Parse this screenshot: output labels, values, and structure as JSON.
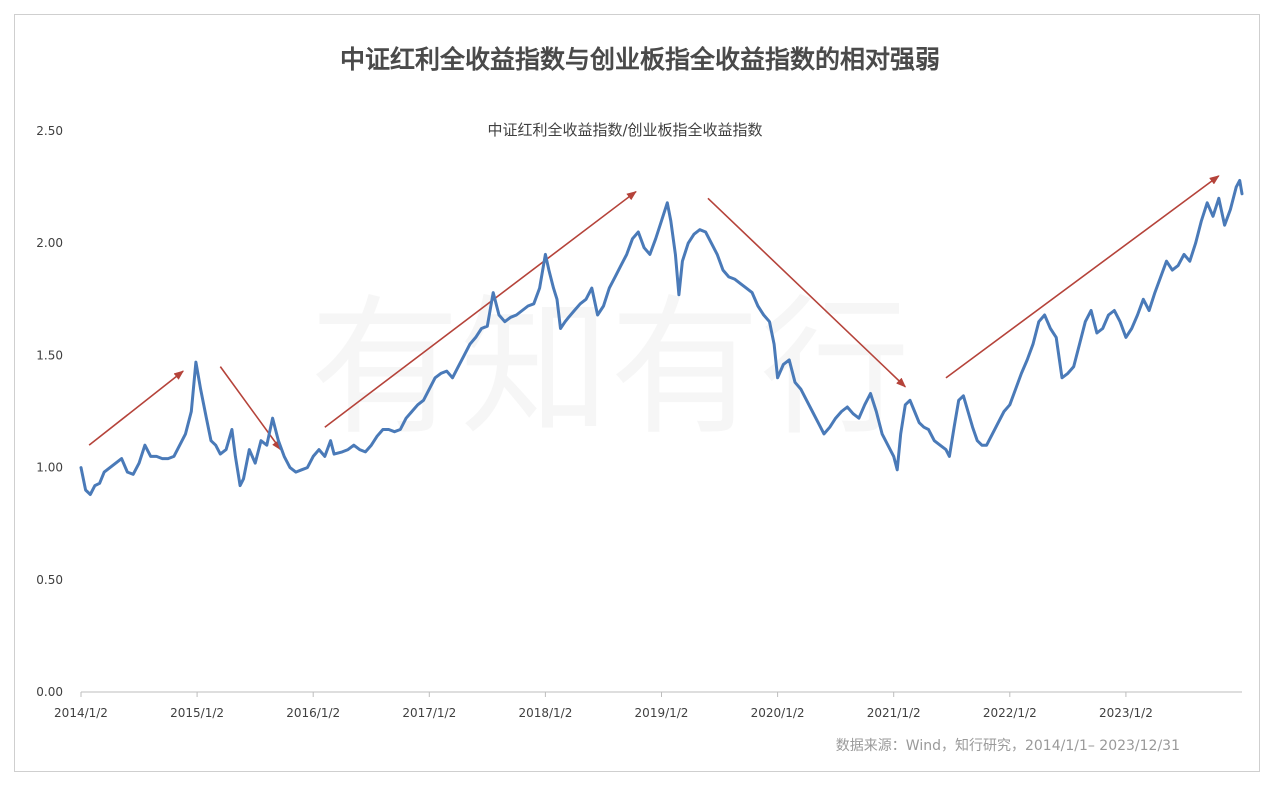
{
  "chart_data": {
    "type": "line",
    "title": "中证红利全收益指数与创业板指全收益指数的相对强弱",
    "subtitle": "中证红利全收益指数/创业板指全收益指数",
    "source": "数据来源：Wind，知行研究，2014/1/1– 2023/12/31",
    "watermark": "有知有行",
    "ylim": [
      0,
      2.5
    ],
    "yticks": [
      "0.00",
      "0.50",
      "1.00",
      "1.50",
      "2.00",
      "2.50"
    ],
    "xticks": [
      "2014/1/2",
      "2015/1/2",
      "2016/1/2",
      "2017/1/2",
      "2018/1/2",
      "2019/1/2",
      "2020/1/2",
      "2021/1/2",
      "2022/1/2",
      "2023/1/2"
    ],
    "x_range": [
      2014.0,
      2024.0
    ],
    "grid": false,
    "line_color": "#4a7ab8",
    "arrow_color": "#b5433a",
    "series": [
      {
        "values": [
          [
            2014.0,
            1.0
          ],
          [
            2014.04,
            0.9
          ],
          [
            2014.08,
            0.88
          ],
          [
            2014.12,
            0.92
          ],
          [
            2014.16,
            0.93
          ],
          [
            2014.2,
            0.98
          ],
          [
            2014.25,
            1.0
          ],
          [
            2014.3,
            1.02
          ],
          [
            2014.35,
            1.04
          ],
          [
            2014.4,
            0.98
          ],
          [
            2014.45,
            0.97
          ],
          [
            2014.5,
            1.02
          ],
          [
            2014.55,
            1.1
          ],
          [
            2014.6,
            1.05
          ],
          [
            2014.65,
            1.05
          ],
          [
            2014.7,
            1.04
          ],
          [
            2014.75,
            1.04
          ],
          [
            2014.8,
            1.05
          ],
          [
            2014.85,
            1.1
          ],
          [
            2014.9,
            1.15
          ],
          [
            2014.95,
            1.25
          ],
          [
            2014.99,
            1.47
          ],
          [
            2015.03,
            1.35
          ],
          [
            2015.08,
            1.22
          ],
          [
            2015.12,
            1.12
          ],
          [
            2015.16,
            1.1
          ],
          [
            2015.2,
            1.06
          ],
          [
            2015.25,
            1.08
          ],
          [
            2015.3,
            1.17
          ],
          [
            2015.33,
            1.05
          ],
          [
            2015.37,
            0.92
          ],
          [
            2015.4,
            0.95
          ],
          [
            2015.45,
            1.08
          ],
          [
            2015.5,
            1.02
          ],
          [
            2015.55,
            1.12
          ],
          [
            2015.6,
            1.1
          ],
          [
            2015.65,
            1.22
          ],
          [
            2015.7,
            1.12
          ],
          [
            2015.75,
            1.05
          ],
          [
            2015.8,
            1.0
          ],
          [
            2015.85,
            0.98
          ],
          [
            2015.9,
            0.99
          ],
          [
            2015.95,
            1.0
          ],
          [
            2016.0,
            1.05
          ],
          [
            2016.05,
            1.08
          ],
          [
            2016.1,
            1.05
          ],
          [
            2016.15,
            1.12
          ],
          [
            2016.18,
            1.06
          ],
          [
            2016.25,
            1.07
          ],
          [
            2016.3,
            1.08
          ],
          [
            2016.35,
            1.1
          ],
          [
            2016.4,
            1.08
          ],
          [
            2016.45,
            1.07
          ],
          [
            2016.5,
            1.1
          ],
          [
            2016.55,
            1.14
          ],
          [
            2016.6,
            1.17
          ],
          [
            2016.65,
            1.17
          ],
          [
            2016.7,
            1.16
          ],
          [
            2016.75,
            1.17
          ],
          [
            2016.8,
            1.22
          ],
          [
            2016.85,
            1.25
          ],
          [
            2016.9,
            1.28
          ],
          [
            2016.95,
            1.3
          ],
          [
            2017.0,
            1.35
          ],
          [
            2017.05,
            1.4
          ],
          [
            2017.1,
            1.42
          ],
          [
            2017.15,
            1.43
          ],
          [
            2017.2,
            1.4
          ],
          [
            2017.25,
            1.45
          ],
          [
            2017.3,
            1.5
          ],
          [
            2017.35,
            1.55
          ],
          [
            2017.4,
            1.58
          ],
          [
            2017.45,
            1.62
          ],
          [
            2017.5,
            1.63
          ],
          [
            2017.55,
            1.78
          ],
          [
            2017.6,
            1.68
          ],
          [
            2017.65,
            1.65
          ],
          [
            2017.7,
            1.67
          ],
          [
            2017.75,
            1.68
          ],
          [
            2017.8,
            1.7
          ],
          [
            2017.85,
            1.72
          ],
          [
            2017.9,
            1.73
          ],
          [
            2017.95,
            1.8
          ],
          [
            2018.0,
            1.95
          ],
          [
            2018.03,
            1.88
          ],
          [
            2018.07,
            1.8
          ],
          [
            2018.1,
            1.75
          ],
          [
            2018.13,
            1.62
          ],
          [
            2018.17,
            1.65
          ],
          [
            2018.2,
            1.67
          ],
          [
            2018.25,
            1.7
          ],
          [
            2018.3,
            1.73
          ],
          [
            2018.35,
            1.75
          ],
          [
            2018.4,
            1.8
          ],
          [
            2018.45,
            1.68
          ],
          [
            2018.5,
            1.72
          ],
          [
            2018.55,
            1.8
          ],
          [
            2018.6,
            1.85
          ],
          [
            2018.65,
            1.9
          ],
          [
            2018.7,
            1.95
          ],
          [
            2018.75,
            2.02
          ],
          [
            2018.8,
            2.05
          ],
          [
            2018.85,
            1.98
          ],
          [
            2018.9,
            1.95
          ],
          [
            2018.95,
            2.02
          ],
          [
            2019.0,
            2.1
          ],
          [
            2019.05,
            2.18
          ],
          [
            2019.08,
            2.1
          ],
          [
            2019.12,
            1.95
          ],
          [
            2019.15,
            1.77
          ],
          [
            2019.18,
            1.92
          ],
          [
            2019.23,
            2.0
          ],
          [
            2019.28,
            2.04
          ],
          [
            2019.33,
            2.06
          ],
          [
            2019.38,
            2.05
          ],
          [
            2019.43,
            2.0
          ],
          [
            2019.48,
            1.95
          ],
          [
            2019.53,
            1.88
          ],
          [
            2019.58,
            1.85
          ],
          [
            2019.63,
            1.84
          ],
          [
            2019.68,
            1.82
          ],
          [
            2019.73,
            1.8
          ],
          [
            2019.78,
            1.78
          ],
          [
            2019.83,
            1.72
          ],
          [
            2019.88,
            1.68
          ],
          [
            2019.93,
            1.65
          ],
          [
            2019.97,
            1.55
          ],
          [
            2020.0,
            1.4
          ],
          [
            2020.05,
            1.46
          ],
          [
            2020.1,
            1.48
          ],
          [
            2020.15,
            1.38
          ],
          [
            2020.2,
            1.35
          ],
          [
            2020.25,
            1.3
          ],
          [
            2020.3,
            1.25
          ],
          [
            2020.35,
            1.2
          ],
          [
            2020.4,
            1.15
          ],
          [
            2020.45,
            1.18
          ],
          [
            2020.5,
            1.22
          ],
          [
            2020.55,
            1.25
          ],
          [
            2020.6,
            1.27
          ],
          [
            2020.65,
            1.24
          ],
          [
            2020.7,
            1.22
          ],
          [
            2020.75,
            1.28
          ],
          [
            2020.8,
            1.33
          ],
          [
            2020.85,
            1.25
          ],
          [
            2020.9,
            1.15
          ],
          [
            2020.95,
            1.1
          ],
          [
            2021.0,
            1.05
          ],
          [
            2021.03,
            0.99
          ],
          [
            2021.06,
            1.15
          ],
          [
            2021.1,
            1.28
          ],
          [
            2021.14,
            1.3
          ],
          [
            2021.18,
            1.25
          ],
          [
            2021.22,
            1.2
          ],
          [
            2021.26,
            1.18
          ],
          [
            2021.3,
            1.17
          ],
          [
            2021.35,
            1.12
          ],
          [
            2021.4,
            1.1
          ],
          [
            2021.45,
            1.08
          ],
          [
            2021.48,
            1.05
          ],
          [
            2021.52,
            1.18
          ],
          [
            2021.56,
            1.3
          ],
          [
            2021.6,
            1.32
          ],
          [
            2021.64,
            1.25
          ],
          [
            2021.68,
            1.18
          ],
          [
            2021.72,
            1.12
          ],
          [
            2021.76,
            1.1
          ],
          [
            2021.8,
            1.1
          ],
          [
            2021.85,
            1.15
          ],
          [
            2021.9,
            1.2
          ],
          [
            2021.95,
            1.25
          ],
          [
            2022.0,
            1.28
          ],
          [
            2022.05,
            1.35
          ],
          [
            2022.1,
            1.42
          ],
          [
            2022.15,
            1.48
          ],
          [
            2022.2,
            1.55
          ],
          [
            2022.25,
            1.65
          ],
          [
            2022.3,
            1.68
          ],
          [
            2022.35,
            1.62
          ],
          [
            2022.4,
            1.58
          ],
          [
            2022.45,
            1.4
          ],
          [
            2022.5,
            1.42
          ],
          [
            2022.55,
            1.45
          ],
          [
            2022.6,
            1.55
          ],
          [
            2022.65,
            1.65
          ],
          [
            2022.7,
            1.7
          ],
          [
            2022.75,
            1.6
          ],
          [
            2022.8,
            1.62
          ],
          [
            2022.85,
            1.68
          ],
          [
            2022.9,
            1.7
          ],
          [
            2022.95,
            1.65
          ],
          [
            2023.0,
            1.58
          ],
          [
            2023.05,
            1.62
          ],
          [
            2023.1,
            1.68
          ],
          [
            2023.15,
            1.75
          ],
          [
            2023.2,
            1.7
          ],
          [
            2023.25,
            1.78
          ],
          [
            2023.3,
            1.85
          ],
          [
            2023.35,
            1.92
          ],
          [
            2023.4,
            1.88
          ],
          [
            2023.45,
            1.9
          ],
          [
            2023.5,
            1.95
          ],
          [
            2023.55,
            1.92
          ],
          [
            2023.6,
            2.0
          ],
          [
            2023.65,
            2.1
          ],
          [
            2023.7,
            2.18
          ],
          [
            2023.75,
            2.12
          ],
          [
            2023.8,
            2.2
          ],
          [
            2023.85,
            2.08
          ],
          [
            2023.9,
            2.15
          ],
          [
            2023.95,
            2.25
          ],
          [
            2023.98,
            2.28
          ],
          [
            2024.0,
            2.22
          ]
        ]
      }
    ],
    "annotations": [
      {
        "type": "arrow",
        "from": [
          2014.07,
          1.1
        ],
        "to": [
          2014.88,
          1.43
        ]
      },
      {
        "type": "arrow",
        "from": [
          2015.2,
          1.45
        ],
        "to": [
          2015.72,
          1.08
        ]
      },
      {
        "type": "arrow",
        "from": [
          2016.1,
          1.18
        ],
        "to": [
          2018.78,
          2.23
        ]
      },
      {
        "type": "arrow",
        "from": [
          2019.4,
          2.2
        ],
        "to": [
          2021.1,
          1.36
        ]
      },
      {
        "type": "arrow",
        "from": [
          2021.45,
          1.4
        ],
        "to": [
          2023.8,
          2.3
        ]
      }
    ]
  }
}
